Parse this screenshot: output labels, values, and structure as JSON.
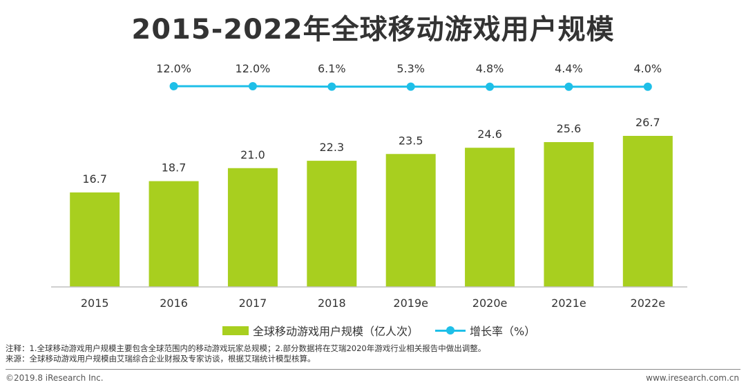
{
  "title": "2015-2022年全球移动游戏用户规模",
  "colors": {
    "bar": "#A8CF1F",
    "line": "#1EBFE8",
    "axis": "#BFBFBF",
    "text": "#333333"
  },
  "legend": {
    "bar_label": "全球移动游戏用户规模（亿人次）",
    "line_label": "增长率（%）"
  },
  "notes": {
    "note": "注释：1.全球移动游戏用户规模主要包含全球范围内的移动游戏玩家总规模；2.部分数据将在艾瑞2020年游戏行业相关报告中做出调整。",
    "source": "来源：全球移动游戏用户规模由艾瑞综合企业财报及专家访谈，根据艾瑞统计模型核算。"
  },
  "footer": {
    "copyright": "©2019.8 iResearch Inc.",
    "website": "www.iresearch.com.cn"
  },
  "chart_data": {
    "type": "bar",
    "title": "2015-2022年全球移动游戏用户规模",
    "categories": [
      "2015",
      "2016",
      "2017",
      "2018",
      "2019e",
      "2020e",
      "2021e",
      "2022e"
    ],
    "series": [
      {
        "name": "全球移动游戏用户规模（亿人次）",
        "type": "bar",
        "values": [
          16.7,
          18.7,
          21.0,
          22.3,
          23.5,
          24.6,
          25.6,
          26.7
        ],
        "labels": [
          "16.7",
          "18.7",
          "21.0",
          "22.3",
          "23.5",
          "24.6",
          "25.6",
          "26.7"
        ]
      },
      {
        "name": "增长率（%）",
        "type": "line",
        "x": [
          "2016",
          "2017",
          "2018",
          "2019e",
          "2020e",
          "2021e",
          "2022e"
        ],
        "values": [
          12.0,
          12.0,
          6.1,
          5.3,
          4.8,
          4.4,
          4.0
        ],
        "labels": [
          "12.0%",
          "12.0%",
          "6.1%",
          "5.3%",
          "4.8%",
          "4.4%",
          "4.0%"
        ]
      }
    ],
    "legend_position": "bottom",
    "grid": false
  }
}
